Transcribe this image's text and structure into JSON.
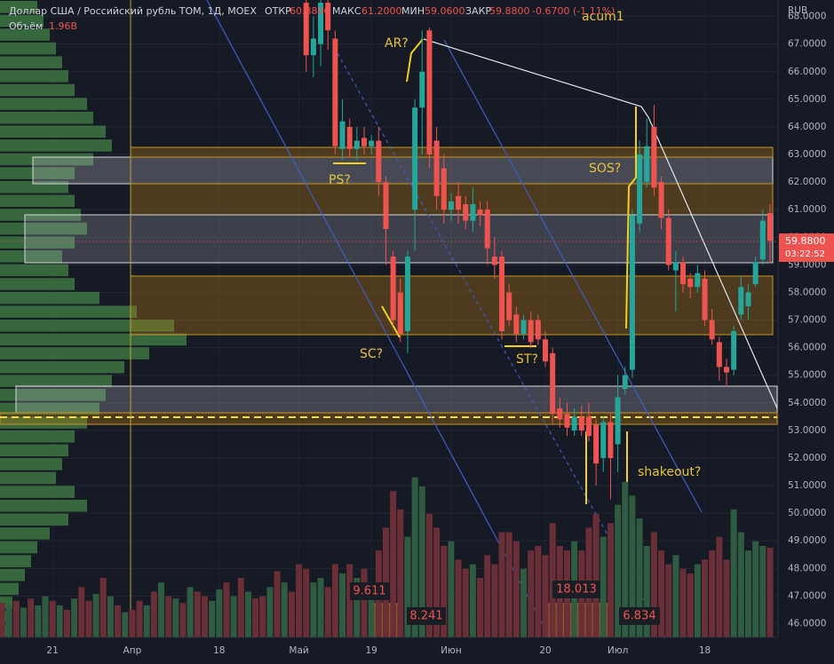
{
  "chart_data": {
    "type": "candlestick",
    "title": "Доллар США / Российский рубль TOM, 1Д, MOEX",
    "ohlc_labels": [
      "ОТКР",
      "МАКС",
      "МИН",
      "ЗАКР"
    ],
    "ohlc_values": [
      {
        "value": 60.88,
        "label": "60.8800"
      },
      {
        "value": 61.2,
        "label": "61.2000"
      },
      {
        "value": 59.06,
        "label": "59.0600"
      },
      {
        "value": 59.88,
        "label": "59.8800"
      }
    ],
    "change_label": "-0.6700 (-1.11%)",
    "volume_label": "Объём",
    "volume_value": {
      "value": 1.96,
      "label": "1.96B"
    },
    "currency": "RUB",
    "last_price": {
      "value": 59.88,
      "label": "59.8800"
    },
    "countdown": "03:22:52",
    "annotations": [
      "acum1",
      "AR?",
      "PS?",
      "SC?",
      "ST?",
      "SOS?",
      "shakeout?"
    ],
    "volume_annotations": [
      "9.611",
      "8.241",
      "18.013",
      "6.834"
    ],
    "ylim": [
      45.5,
      68.6
    ],
    "yticks": [
      {
        "value": 46,
        "label": "46.0000"
      },
      {
        "value": 47,
        "label": "47.0000"
      },
      {
        "value": 48,
        "label": "48.0000"
      },
      {
        "value": 49,
        "label": "49.0000"
      },
      {
        "value": 50,
        "label": "50.0000"
      },
      {
        "value": 51,
        "label": "51.0000"
      },
      {
        "value": 52,
        "label": "52.0000"
      },
      {
        "value": 53,
        "label": "53.0000"
      },
      {
        "value": 54,
        "label": "54.0000"
      },
      {
        "value": 55,
        "label": "55.0000"
      },
      {
        "value": 56,
        "label": "56.0000"
      },
      {
        "value": 57,
        "label": "57.0000"
      },
      {
        "value": 58,
        "label": "58.0000"
      },
      {
        "value": 59,
        "label": "59.0000"
      },
      {
        "value": 60,
        "label": "60.0000"
      },
      {
        "value": 61,
        "label": "61.0000"
      },
      {
        "value": 62,
        "label": "62.0000"
      },
      {
        "value": 63,
        "label": "63.0000"
      },
      {
        "value": 64,
        "label": "64.0000"
      },
      {
        "value": 65,
        "label": "65.0000"
      },
      {
        "value": 66,
        "label": "66.0000"
      },
      {
        "value": 67,
        "label": "67.0000"
      },
      {
        "value": 68,
        "label": "68.0000"
      }
    ],
    "xticks": [
      {
        "value": 7,
        "label": "21"
      },
      {
        "value": 18,
        "label": "Апр"
      },
      {
        "value": 30,
        "label": "18"
      },
      {
        "value": 41,
        "label": "Май"
      },
      {
        "value": 51,
        "label": "19"
      },
      {
        "value": 62,
        "label": "Июн"
      },
      {
        "value": 75,
        "label": "20"
      },
      {
        "value": 85,
        "label": "Июл"
      },
      {
        "value": 97,
        "label": "18"
      }
    ],
    "grid": true,
    "up_color": "#26a69a",
    "down_color": "#ef5350",
    "volume_up_color": "#2f5b40",
    "volume_down_color": "#6a2f36",
    "profile_color": "#3f7a44",
    "history_volumes": [
      0.75,
      0.7,
      0.8,
      0.65,
      0.85,
      0.7,
      0.9,
      0.8,
      0.7,
      0.6,
      0.85,
      1.1,
      0.8,
      0.95,
      1.3,
      0.9,
      0.7,
      0.55,
      0.6,
      0.8,
      0.7,
      1.0,
      1.2,
      0.9,
      0.85,
      0.75,
      1.1,
      1.0,
      0.9,
      0.8,
      1.05,
      1.2,
      0.9,
      1.3,
      1.0,
      0.85,
      0.9,
      1.1,
      1.45,
      1.2,
      1.0,
      1.6
    ],
    "history_up": [
      false,
      true,
      false,
      true,
      false,
      true,
      true,
      false,
      true,
      false,
      true,
      false,
      false,
      true,
      false,
      true,
      false,
      true,
      false,
      false,
      true,
      false,
      true,
      false,
      true,
      false,
      true,
      false,
      false,
      true,
      true,
      false,
      true,
      false,
      true,
      false,
      false,
      true,
      false,
      true,
      false,
      false
    ],
    "candles": [
      [
        68.5,
        69,
        66,
        66.6,
        1.5
      ],
      [
        66.6,
        68,
        65.8,
        67.2,
        1.2
      ],
      [
        67,
        69,
        66.2,
        68.5,
        1.3
      ],
      [
        68.5,
        69,
        66.8,
        67.5,
        1.1
      ],
      [
        67.2,
        67.5,
        63,
        63.3,
        1.6
      ],
      [
        63.2,
        65,
        62.8,
        64.2,
        1.4
      ],
      [
        64,
        64.3,
        62.9,
        63.2,
        1.6
      ],
      [
        63.2,
        64,
        62.8,
        63.5,
        1.3
      ],
      [
        63.6,
        64,
        63,
        63.3,
        1.5
      ],
      [
        63.3,
        63.7,
        63,
        63.5,
        1.2
      ],
      [
        63.5,
        64,
        61.5,
        62,
        1.9
      ],
      [
        62,
        62.2,
        59,
        60.3,
        2.4
      ],
      [
        59.3,
        59.5,
        56.8,
        57,
        3.2
      ],
      [
        58,
        58.5,
        56.2,
        56.5,
        2.8
      ],
      [
        56.6,
        59.5,
        55.8,
        59.3,
        2.2
      ],
      [
        61,
        65,
        59.5,
        64.7,
        3.5
      ],
      [
        64.7,
        67.5,
        63,
        66,
        3.3
      ],
      [
        67.5,
        67.6,
        62.5,
        63,
        2.7
      ],
      [
        63.5,
        64,
        61,
        61.5,
        2.4
      ],
      [
        62.5,
        63,
        60.5,
        61,
        2.0
      ],
      [
        61,
        61.6,
        60.6,
        61.3,
        2.1
      ],
      [
        61.5,
        62,
        60.5,
        61,
        1.7
      ],
      [
        61.2,
        61.5,
        60.3,
        60.6,
        1.5
      ],
      [
        60.6,
        61.8,
        60.2,
        61.2,
        1.6
      ],
      [
        61,
        61.3,
        60.4,
        60.8,
        1.3
      ],
      [
        61,
        61.3,
        59,
        59.6,
        1.8
      ],
      [
        59.3,
        60,
        58.5,
        59,
        1.6
      ],
      [
        59.3,
        59.5,
        56.3,
        56.6,
        2.3
      ],
      [
        58,
        58.3,
        56.8,
        57,
        2.3
      ],
      [
        57.2,
        57.5,
        56.2,
        56.5,
        2.1
      ],
      [
        56.5,
        57.2,
        56.3,
        57,
        1.5
      ],
      [
        57,
        57.3,
        56,
        56.2,
        1.9
      ],
      [
        57,
        57.2,
        56.1,
        56.3,
        2.0
      ],
      [
        56.3,
        56.6,
        55.3,
        55.5,
        1.8
      ],
      [
        55.8,
        56,
        53.2,
        53.6,
        2.5
      ],
      [
        53.8,
        54.2,
        53.1,
        53.4,
        2.0
      ],
      [
        53.6,
        54,
        52.8,
        53.1,
        1.9
      ],
      [
        53,
        53.8,
        52.8,
        53.5,
        2.1
      ],
      [
        53.5,
        53.9,
        52.8,
        53,
        1.9
      ],
      [
        53.5,
        54,
        52.6,
        52.8,
        2.4
      ],
      [
        53.2,
        53.4,
        51,
        51.8,
        2.7
      ],
      [
        52,
        53.5,
        51.5,
        53.3,
        2.2
      ],
      [
        53.3,
        53.6,
        50.5,
        52,
        2.5
      ],
      [
        52.5,
        55,
        51.5,
        54.2,
        2.9
      ],
      [
        54.5,
        55.3,
        54.3,
        55,
        3.4
      ],
      [
        55.2,
        61,
        54.9,
        60.8,
        3.1
      ],
      [
        60.5,
        63.5,
        60.2,
        63,
        2.6
      ],
      [
        62,
        64.3,
        61.8,
        63.3,
        2.0
      ],
      [
        64,
        64.8,
        61.5,
        61.8,
        2.3
      ],
      [
        62,
        62.2,
        60.3,
        60.7,
        1.9
      ],
      [
        60.7,
        61,
        58.8,
        59,
        1.6
      ],
      [
        58.8,
        59.5,
        57.3,
        59.1,
        1.8
      ],
      [
        59.1,
        59.3,
        58,
        58.3,
        1.5
      ],
      [
        58.5,
        58.7,
        57.8,
        58.2,
        1.4
      ],
      [
        58.2,
        59,
        58,
        58.7,
        1.6
      ],
      [
        58.5,
        58.8,
        56.8,
        57,
        1.7
      ],
      [
        57,
        57.4,
        56.1,
        56.3,
        1.9
      ],
      [
        56.2,
        56.4,
        54.8,
        55.3,
        2.2
      ],
      [
        55.3,
        55.6,
        54.6,
        55.1,
        1.7
      ],
      [
        55.2,
        56.8,
        55,
        56.6,
        2.8
      ],
      [
        57.2,
        58.6,
        57,
        58.2,
        2.3
      ],
      [
        57.5,
        58.3,
        57,
        58,
        1.9
      ],
      [
        58.3,
        59.3,
        58.2,
        59.1,
        2.1
      ],
      [
        59.2,
        61,
        59,
        60.6,
        2.0
      ],
      [
        60.88,
        61.2,
        59.06,
        59.88,
        1.96
      ]
    ],
    "volume_profile": [
      30,
      35,
      40,
      45,
      50,
      55,
      60,
      70,
      75,
      85,
      90,
      75,
      60,
      55,
      60,
      65,
      70,
      60,
      50,
      55,
      60,
      80,
      110,
      140,
      150,
      120,
      100,
      90,
      85,
      80,
      70,
      60,
      55,
      50,
      45,
      60,
      70,
      55,
      40,
      30,
      25,
      20,
      15,
      10,
      8,
      5
    ]
  }
}
